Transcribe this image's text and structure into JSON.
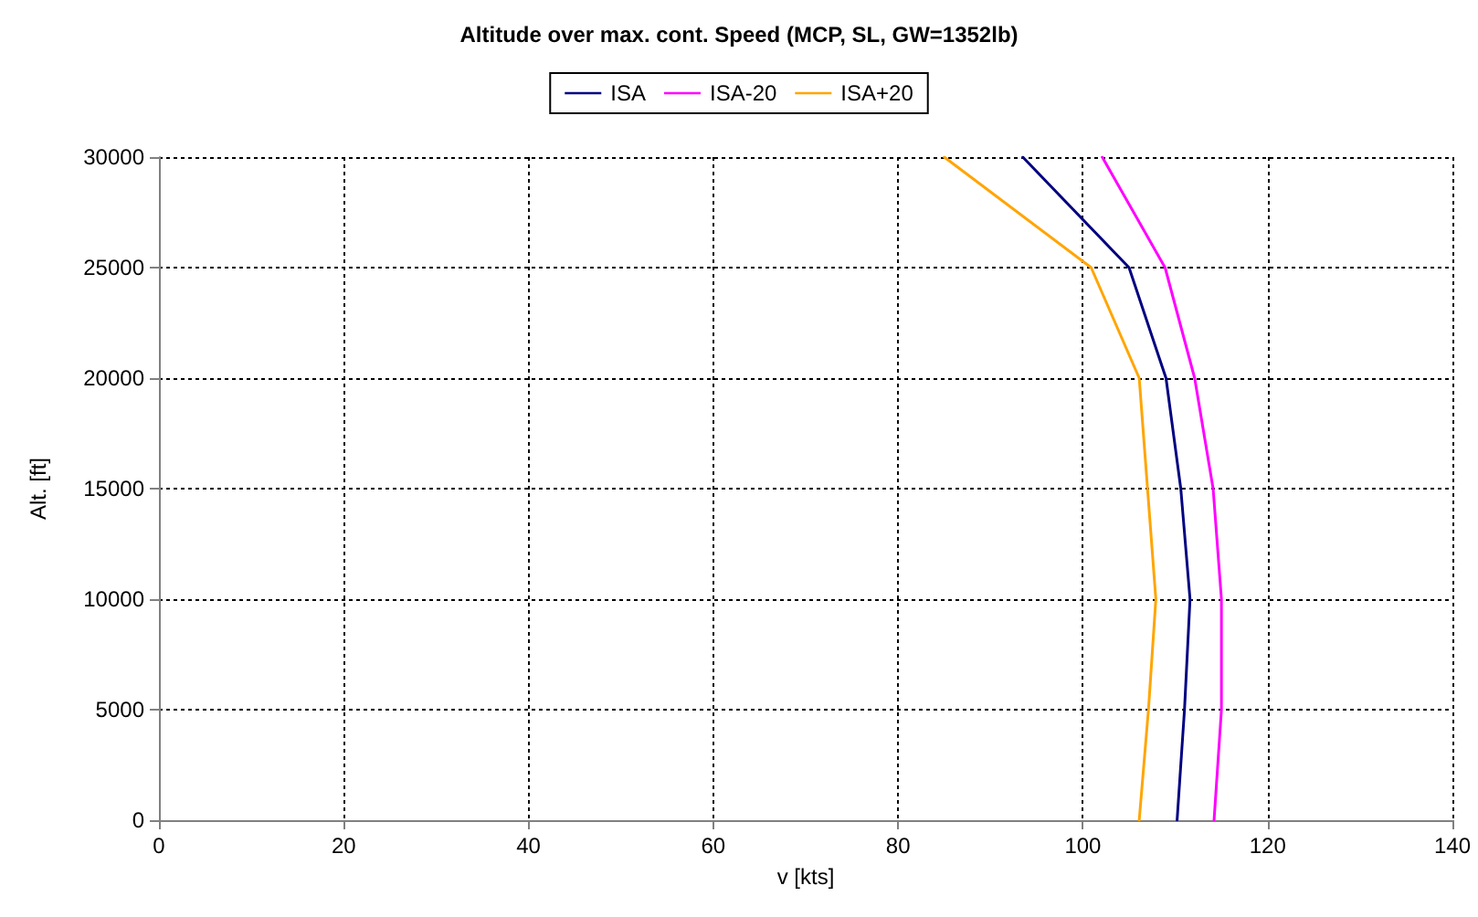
{
  "chart_data": {
    "type": "line",
    "title": "Altitude over max. cont. Speed (MCP, SL, GW=1352lb)",
    "xlabel": "v [kts]",
    "ylabel": "Alt. [ft]",
    "series": [
      {
        "name": "ISA",
        "color": "#000080",
        "x": [
          110.2,
          111,
          111.6,
          110.6,
          109,
          105,
          93.5
        ],
        "values": [
          0,
          5000,
          10000,
          15000,
          20000,
          25000,
          30000
        ]
      },
      {
        "name": "ISA-20",
        "color": "#ff00ff",
        "x": [
          114.2,
          115,
          115,
          114.1,
          112.1,
          108.9,
          102.1
        ],
        "values": [
          0,
          5000,
          10000,
          15000,
          20000,
          25000,
          30000
        ]
      },
      {
        "name": "ISA+20",
        "color": "#ffa500",
        "x": [
          106.1,
          107.1,
          107.9,
          107,
          106.1,
          100.9,
          85
        ],
        "values": [
          0,
          5000,
          10000,
          15000,
          20000,
          25000,
          30000
        ]
      }
    ],
    "xlim": [
      0,
      140
    ],
    "xticks": [
      0,
      20,
      40,
      60,
      80,
      100,
      120,
      140
    ],
    "ylim": [
      0,
      30000
    ],
    "yticks": [
      0,
      5000,
      10000,
      15000,
      20000,
      25000,
      30000
    ],
    "grid": true,
    "legend": "top",
    "marker": "none",
    "line_style": "solid"
  }
}
